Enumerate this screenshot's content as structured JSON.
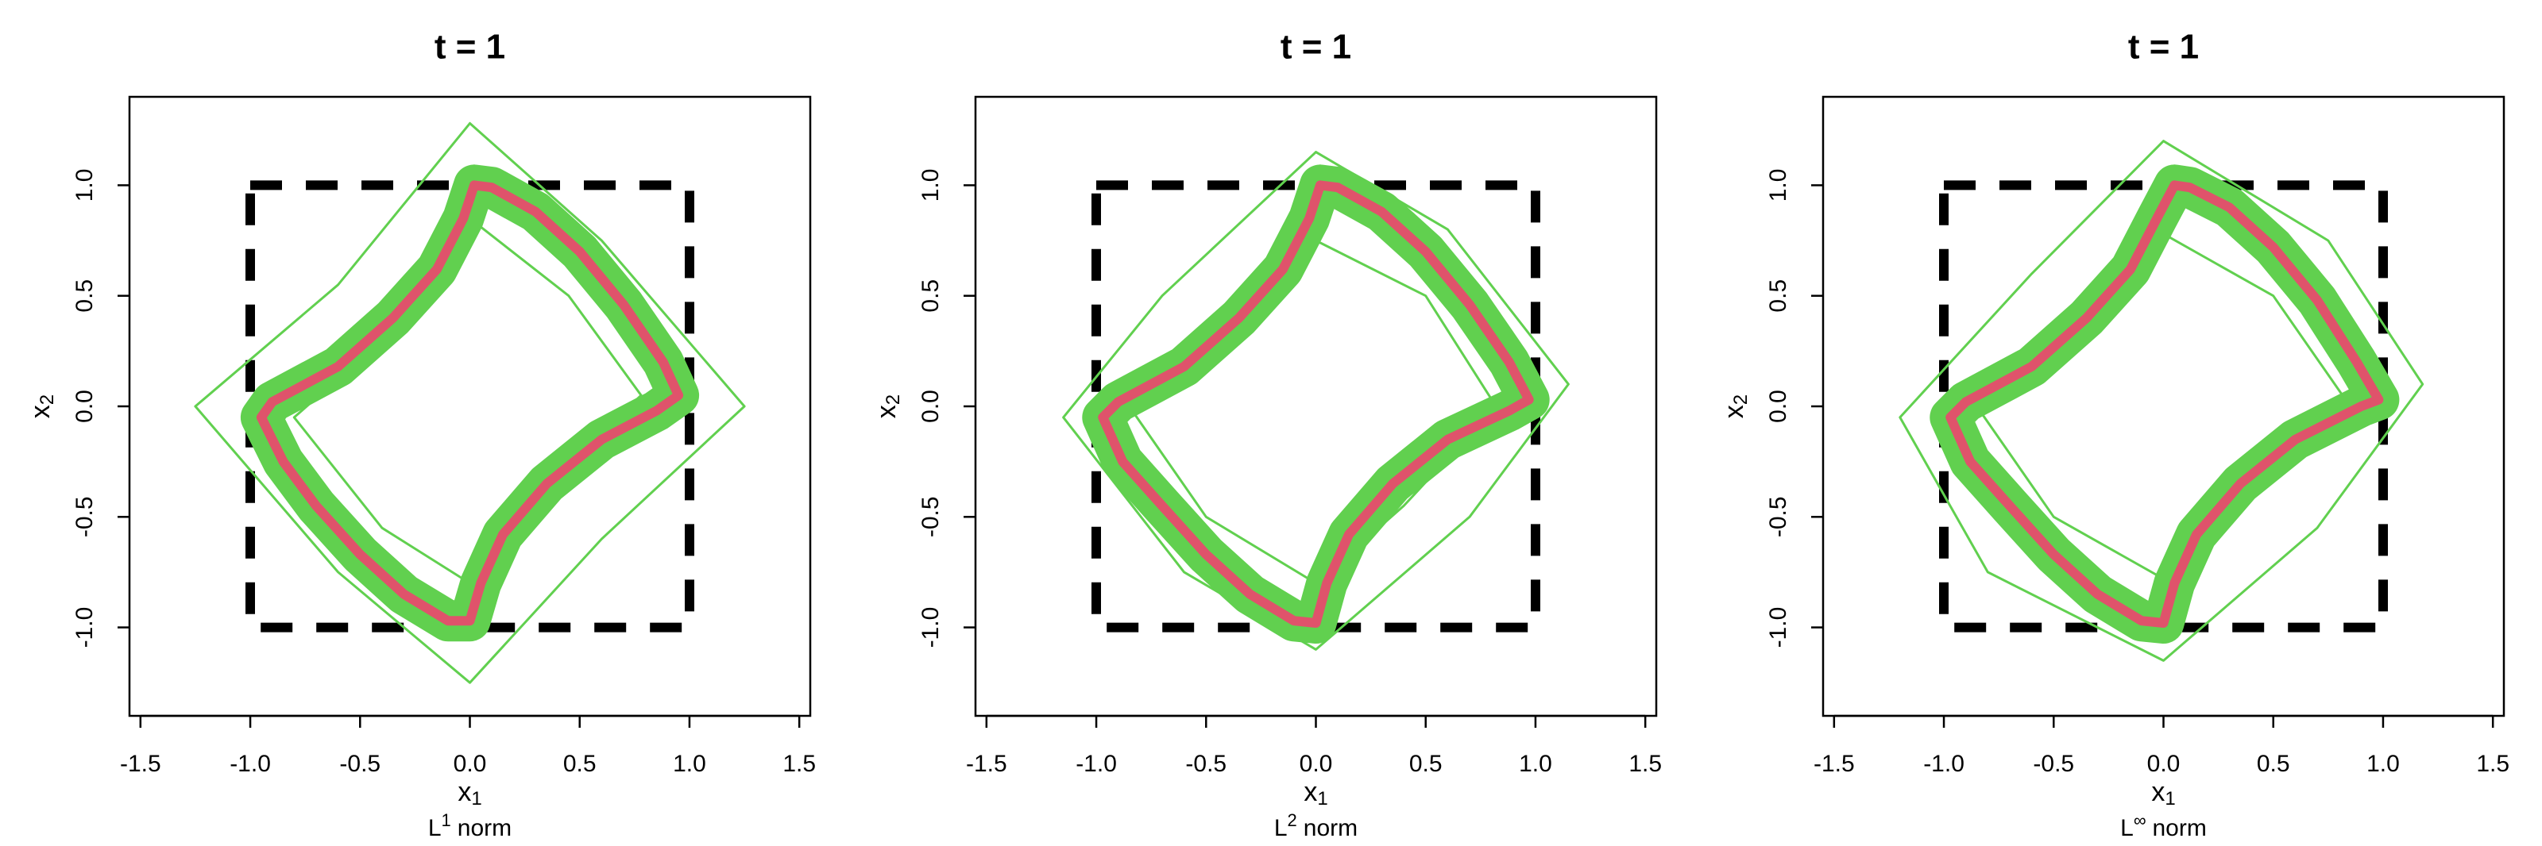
{
  "chart_data": [
    {
      "type": "line",
      "title": "t = 1",
      "xlabel": {
        "letter": "x",
        "sub": "1"
      },
      "ylabel": {
        "letter": "x",
        "sub": "2"
      },
      "norm_label": {
        "letter": "L",
        "sup": "1",
        "text": "norm"
      },
      "xlim": [
        -1.55,
        1.55
      ],
      "ylim": [
        -1.4,
        1.4
      ],
      "xticks": [
        -1.5,
        {
          "value": -1,
          "label": "-1.0"
        },
        -0.5,
        {
          "value": 0,
          "label": "0.0"
        },
        0.5,
        {
          "value": 1,
          "label": "1.0"
        },
        1.5
      ],
      "yticks": [
        {
          "value": -1,
          "label": "-1.0"
        },
        -0.5,
        {
          "value": 0,
          "label": "0.0"
        },
        0.5,
        {
          "value": 1,
          "label": "1.0"
        }
      ],
      "series": [
        {
          "style": "dashed",
          "color": "#000000",
          "x": [
            -1,
            1,
            1,
            -1,
            -1
          ],
          "y": [
            1,
            1,
            -1,
            -1,
            1
          ]
        },
        {
          "style": "thin",
          "color": "#61D04F",
          "x": [
            0,
            0.6,
            1.25,
            0.6,
            0,
            -0.6,
            -1.25,
            -0.6,
            0
          ],
          "y": [
            1.28,
            0.75,
            0,
            -0.6,
            -1.25,
            -0.75,
            0,
            0.55,
            1.28
          ]
        },
        {
          "style": "thin",
          "color": "#61D04F",
          "x": [
            0,
            0.45,
            0.78,
            0.4,
            0,
            -0.4,
            -0.8,
            -0.4,
            0
          ],
          "y": [
            0.85,
            0.5,
            0.05,
            -0.3,
            -0.8,
            -0.55,
            -0.05,
            0.3,
            0.85
          ]
        },
        {
          "style": "band",
          "color": "#61D04F",
          "x": [
            0.02,
            0.1,
            0.3,
            0.5,
            0.7,
            0.88,
            0.95,
            0.85,
            0.6,
            0.35,
            0.15,
            0.05,
            0,
            -0.1,
            -0.3,
            -0.5,
            -0.7,
            -0.85,
            -0.95,
            -0.9,
            -0.6,
            -0.35,
            -0.15,
            -0.03,
            0.02
          ],
          "y": [
            1,
            0.99,
            0.88,
            0.7,
            0.46,
            0.2,
            0.05,
            -0.02,
            -0.15,
            -0.35,
            -0.58,
            -0.8,
            -0.97,
            -0.97,
            -0.85,
            -0.67,
            -0.45,
            -0.25,
            -0.05,
            0.02,
            0.18,
            0.4,
            0.62,
            0.85,
            1
          ]
        },
        {
          "style": "thick",
          "color": "#DF536B",
          "x": [
            0.02,
            0.1,
            0.3,
            0.5,
            0.7,
            0.88,
            0.95,
            0.85,
            0.6,
            0.35,
            0.15,
            0.05,
            0,
            -0.1,
            -0.3,
            -0.5,
            -0.7,
            -0.85,
            -0.95,
            -0.9,
            -0.6,
            -0.35,
            -0.15,
            -0.03,
            0.02
          ],
          "y": [
            1,
            0.99,
            0.88,
            0.7,
            0.46,
            0.2,
            0.05,
            -0.02,
            -0.15,
            -0.35,
            -0.58,
            -0.8,
            -0.97,
            -0.97,
            -0.85,
            -0.67,
            -0.45,
            -0.25,
            -0.05,
            0.02,
            0.18,
            0.4,
            0.62,
            0.85,
            1
          ]
        }
      ]
    },
    {
      "type": "line",
      "title": "t = 1",
      "xlabel": {
        "letter": "x",
        "sub": "1"
      },
      "ylabel": {
        "letter": "x",
        "sub": "2"
      },
      "norm_label": {
        "letter": "L",
        "sup": "2",
        "text": "norm"
      },
      "xlim": [
        -1.55,
        1.55
      ],
      "ylim": [
        -1.4,
        1.4
      ],
      "xticks": [
        -1.5,
        {
          "value": -1,
          "label": "-1.0"
        },
        -0.5,
        {
          "value": 0,
          "label": "0.0"
        },
        0.5,
        {
          "value": 1,
          "label": "1.0"
        },
        1.5
      ],
      "yticks": [
        {
          "value": -1,
          "label": "-1.0"
        },
        -0.5,
        {
          "value": 0,
          "label": "0.0"
        },
        0.5,
        {
          "value": 1,
          "label": "1.0"
        }
      ],
      "series": [
        {
          "style": "dashed",
          "color": "#000000",
          "x": [
            -1,
            1,
            1,
            -1,
            -1
          ],
          "y": [
            1,
            1,
            -1,
            -1,
            1
          ]
        },
        {
          "style": "thin",
          "color": "#61D04F",
          "x": [
            0,
            0.6,
            1.15,
            0.7,
            0,
            -0.6,
            -1.15,
            -0.7,
            0
          ],
          "y": [
            1.15,
            0.8,
            0.1,
            -0.5,
            -1.1,
            -0.75,
            -0.05,
            0.5,
            1.15
          ]
        },
        {
          "style": "thin",
          "color": "#61D04F",
          "x": [
            0,
            0.5,
            0.82,
            0.4,
            0,
            -0.5,
            -0.85,
            -0.4,
            0
          ],
          "y": [
            0.75,
            0.5,
            0,
            -0.45,
            -0.8,
            -0.5,
            0,
            0.4,
            0.75
          ]
        },
        {
          "style": "band",
          "color": "#61D04F",
          "x": [
            0.02,
            0.1,
            0.3,
            0.5,
            0.7,
            0.88,
            0.97,
            0.88,
            0.6,
            0.35,
            0.15,
            0.05,
            0,
            -0.1,
            -0.3,
            -0.5,
            -0.7,
            -0.88,
            -0.97,
            -0.9,
            -0.6,
            -0.35,
            -0.15,
            -0.03,
            0.02
          ],
          "y": [
            1,
            0.99,
            0.88,
            0.7,
            0.46,
            0.2,
            0.03,
            -0.02,
            -0.15,
            -0.35,
            -0.58,
            -0.8,
            -0.98,
            -0.97,
            -0.85,
            -0.67,
            -0.45,
            -0.25,
            -0.05,
            0.02,
            0.18,
            0.4,
            0.62,
            0.85,
            1
          ]
        },
        {
          "style": "thick",
          "color": "#DF536B",
          "x": [
            0.02,
            0.1,
            0.3,
            0.5,
            0.7,
            0.88,
            0.97,
            0.88,
            0.6,
            0.35,
            0.15,
            0.05,
            0,
            -0.1,
            -0.3,
            -0.5,
            -0.7,
            -0.88,
            -0.97,
            -0.9,
            -0.6,
            -0.35,
            -0.15,
            -0.03,
            0.02
          ],
          "y": [
            1,
            0.99,
            0.88,
            0.7,
            0.46,
            0.2,
            0.03,
            -0.02,
            -0.15,
            -0.35,
            -0.58,
            -0.8,
            -0.98,
            -0.97,
            -0.85,
            -0.67,
            -0.45,
            -0.25,
            -0.05,
            0.02,
            0.18,
            0.4,
            0.62,
            0.85,
            1
          ]
        }
      ]
    },
    {
      "type": "line",
      "title": "t = 1",
      "xlabel": {
        "letter": "x",
        "sub": "1"
      },
      "ylabel": {
        "letter": "x",
        "sub": "2"
      },
      "norm_label": {
        "letter": "L",
        "sup": "∞",
        "text": "norm"
      },
      "xlim": [
        -1.55,
        1.55
      ],
      "ylim": [
        -1.4,
        1.4
      ],
      "xticks": [
        -1.5,
        {
          "value": -1,
          "label": "-1.0"
        },
        -0.5,
        {
          "value": 0,
          "label": "0.0"
        },
        0.5,
        {
          "value": 1,
          "label": "1.0"
        },
        1.5
      ],
      "yticks": [
        {
          "value": -1,
          "label": "-1.0"
        },
        -0.5,
        {
          "value": 0,
          "label": "0.0"
        },
        0.5,
        {
          "value": 1,
          "label": "1.0"
        }
      ],
      "series": [
        {
          "style": "dashed",
          "color": "#000000",
          "x": [
            -1,
            1,
            1,
            -1,
            -1
          ],
          "y": [
            1,
            1,
            -1,
            -1,
            1
          ]
        },
        {
          "style": "thin",
          "color": "#61D04F",
          "x": [
            0,
            0.75,
            1.18,
            0.7,
            0,
            -0.8,
            -1.2,
            -0.6,
            0
          ],
          "y": [
            1.2,
            0.75,
            0.1,
            -0.55,
            -1.15,
            -0.75,
            -0.05,
            0.6,
            1.2
          ]
        },
        {
          "style": "thin",
          "color": "#61D04F",
          "x": [
            0,
            0.5,
            0.85,
            0.4,
            0,
            -0.5,
            -0.85,
            -0.4,
            0
          ],
          "y": [
            0.78,
            0.5,
            0,
            -0.4,
            -0.78,
            -0.5,
            0,
            0.4,
            0.78
          ]
        },
        {
          "style": "band",
          "color": "#61D04F",
          "x": [
            0.05,
            0.12,
            0.3,
            0.5,
            0.7,
            0.88,
            0.98,
            0.9,
            0.6,
            0.35,
            0.15,
            0.05,
            0,
            -0.1,
            -0.3,
            -0.5,
            -0.7,
            -0.88,
            -0.97,
            -0.9,
            -0.6,
            -0.35,
            -0.15,
            -0.03,
            0.05
          ],
          "y": [
            1,
            0.99,
            0.9,
            0.72,
            0.48,
            0.2,
            0.03,
            0,
            -0.15,
            -0.35,
            -0.58,
            -0.8,
            -0.98,
            -0.97,
            -0.85,
            -0.67,
            -0.45,
            -0.25,
            -0.05,
            0.02,
            0.18,
            0.4,
            0.62,
            0.85,
            1
          ]
        },
        {
          "style": "thick",
          "color": "#DF536B",
          "x": [
            0.05,
            0.12,
            0.3,
            0.5,
            0.7,
            0.88,
            0.98,
            0.9,
            0.6,
            0.35,
            0.15,
            0.05,
            0,
            -0.1,
            -0.3,
            -0.5,
            -0.7,
            -0.88,
            -0.97,
            -0.9,
            -0.6,
            -0.35,
            -0.15,
            -0.03,
            0.05
          ],
          "y": [
            1,
            0.99,
            0.9,
            0.72,
            0.48,
            0.2,
            0.03,
            0,
            -0.15,
            -0.35,
            -0.58,
            -0.8,
            -0.98,
            -0.97,
            -0.85,
            -0.67,
            -0.45,
            -0.25,
            -0.05,
            0.02,
            0.18,
            0.4,
            0.62,
            0.85,
            1
          ]
        }
      ]
    }
  ]
}
